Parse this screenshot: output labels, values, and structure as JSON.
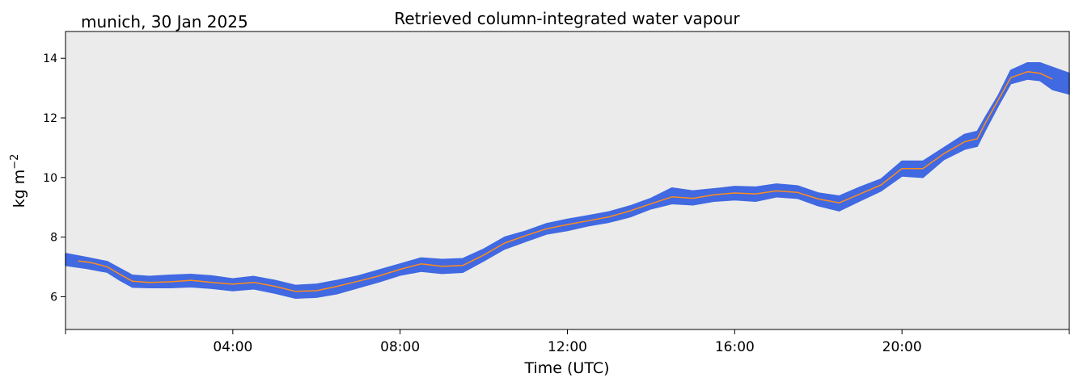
{
  "chart_data": {
    "type": "line",
    "title": "Retrieved column-integrated water vapour",
    "subtitle": "munich, 30 Jan 2025",
    "xlabel": "Time (UTC)",
    "ylabel": "kg m",
    "ylabel_superscript": "−2",
    "xlim": [
      0,
      24
    ],
    "ylim": [
      4.9,
      14.9
    ],
    "x_ticks": [
      {
        "value": 0,
        "label": ""
      },
      {
        "value": 4,
        "label": "04:00"
      },
      {
        "value": 8,
        "label": "08:00"
      },
      {
        "value": 12,
        "label": "12:00"
      },
      {
        "value": 16,
        "label": "16:00"
      },
      {
        "value": 20,
        "label": "20:00"
      },
      {
        "value": 24,
        "label": ""
      }
    ],
    "y_ticks": [
      {
        "value": 6,
        "label": "6"
      },
      {
        "value": 8,
        "label": "8"
      },
      {
        "value": 10,
        "label": "10"
      },
      {
        "value": 12,
        "label": "12"
      },
      {
        "value": 14,
        "label": "14"
      }
    ],
    "grid": false,
    "plot_background": "#ebebeb",
    "series": [
      {
        "kind": "band",
        "color": "#4169e1",
        "x": [
          0.0,
          0.5,
          1.0,
          1.3,
          1.6,
          2.0,
          2.5,
          3.0,
          3.5,
          4.0,
          4.5,
          5.0,
          5.5,
          6.0,
          6.5,
          7.0,
          7.5,
          8.0,
          8.5,
          9.0,
          9.5,
          10.0,
          10.5,
          11.0,
          11.5,
          12.0,
          12.5,
          13.0,
          13.5,
          14.0,
          14.5,
          15.0,
          15.5,
          16.0,
          16.5,
          17.0,
          17.5,
          18.0,
          18.5,
          19.0,
          19.5,
          20.0,
          20.5,
          21.0,
          21.5,
          21.8,
          22.0,
          22.3,
          22.6,
          23.0,
          23.3,
          23.6,
          24.0
        ],
        "upper": [
          7.45,
          7.32,
          7.18,
          6.95,
          6.72,
          6.68,
          6.72,
          6.75,
          6.7,
          6.6,
          6.68,
          6.55,
          6.38,
          6.42,
          6.55,
          6.7,
          6.9,
          7.1,
          7.3,
          7.25,
          7.28,
          7.6,
          8.0,
          8.2,
          8.45,
          8.6,
          8.72,
          8.85,
          9.05,
          9.3,
          9.65,
          9.55,
          9.62,
          9.7,
          9.68,
          9.78,
          9.72,
          9.48,
          9.38,
          9.68,
          9.95,
          10.55,
          10.55,
          11.0,
          11.45,
          11.55,
          12.05,
          12.75,
          13.6,
          13.85,
          13.85,
          13.7,
          13.5
        ],
        "lower": [
          7.05,
          6.95,
          6.82,
          6.55,
          6.32,
          6.3,
          6.3,
          6.33,
          6.28,
          6.2,
          6.26,
          6.12,
          5.95,
          5.98,
          6.1,
          6.3,
          6.5,
          6.72,
          6.85,
          6.78,
          6.82,
          7.2,
          7.6,
          7.85,
          8.1,
          8.22,
          8.38,
          8.5,
          8.68,
          8.95,
          9.12,
          9.08,
          9.2,
          9.25,
          9.2,
          9.35,
          9.3,
          9.05,
          8.88,
          9.22,
          9.55,
          10.05,
          10.0,
          10.6,
          10.95,
          11.05,
          11.6,
          12.4,
          13.15,
          13.3,
          13.25,
          12.95,
          12.8
        ]
      },
      {
        "kind": "line",
        "color": "#ff8c1a",
        "x": [
          0.3,
          0.6,
          1.0,
          1.3,
          1.6,
          2.0,
          2.5,
          3.0,
          3.5,
          4.0,
          4.5,
          5.0,
          5.5,
          6.0,
          6.5,
          7.0,
          7.5,
          8.0,
          8.5,
          9.0,
          9.5,
          10.0,
          10.5,
          11.0,
          11.5,
          12.0,
          12.5,
          13.0,
          13.5,
          14.0,
          14.5,
          15.0,
          15.5,
          16.0,
          16.5,
          17.0,
          17.5,
          18.0,
          18.5,
          19.0,
          19.5,
          20.0,
          20.5,
          21.0,
          21.5,
          21.8,
          22.0,
          22.3,
          22.6,
          23.0,
          23.3,
          23.6
        ],
        "y": [
          7.2,
          7.15,
          7.0,
          6.75,
          6.52,
          6.48,
          6.5,
          6.55,
          6.48,
          6.42,
          6.48,
          6.35,
          6.18,
          6.2,
          6.35,
          6.52,
          6.7,
          6.92,
          7.1,
          7.02,
          7.05,
          7.4,
          7.8,
          8.05,
          8.28,
          8.42,
          8.55,
          8.68,
          8.88,
          9.12,
          9.35,
          9.3,
          9.42,
          9.48,
          9.45,
          9.55,
          9.5,
          9.28,
          9.15,
          9.45,
          9.75,
          10.3,
          10.3,
          10.8,
          11.2,
          11.3,
          11.85,
          12.6,
          13.35,
          13.55,
          13.5,
          13.3
        ]
      }
    ]
  }
}
